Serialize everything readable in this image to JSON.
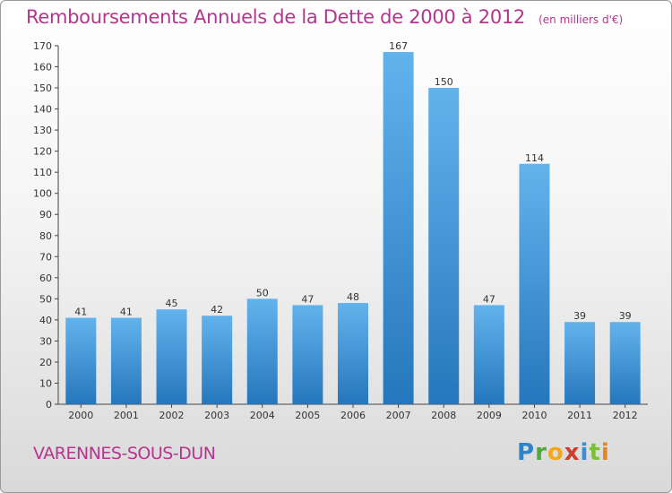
{
  "title": "Remboursements Annuels de la Dette de 2000 à 2012",
  "unit": "(en milliers d'€)",
  "commune": "VARENNES-SOUS-DUN",
  "logo": {
    "p": "P",
    "r": "r",
    "o": "o",
    "x": "x",
    "i": "i",
    "t": "t",
    "i2": "i"
  },
  "colors": {
    "accent": "#b4368c",
    "bar_top": "#62b3ec",
    "bar_bottom": "#2577bd"
  },
  "chart_data": {
    "type": "bar",
    "title": "Remboursements Annuels de la Dette de 2000 à 2012",
    "ylabel": "",
    "xlabel": "",
    "ylim": [
      0,
      170
    ],
    "ytick_step": 10,
    "grid": false,
    "categories": [
      "2000",
      "2001",
      "2002",
      "2003",
      "2004",
      "2005",
      "2006",
      "2007",
      "2008",
      "2009",
      "2010",
      "2011",
      "2012"
    ],
    "values": [
      41,
      41,
      45,
      42,
      50,
      47,
      48,
      167,
      150,
      47,
      114,
      39,
      39
    ]
  }
}
